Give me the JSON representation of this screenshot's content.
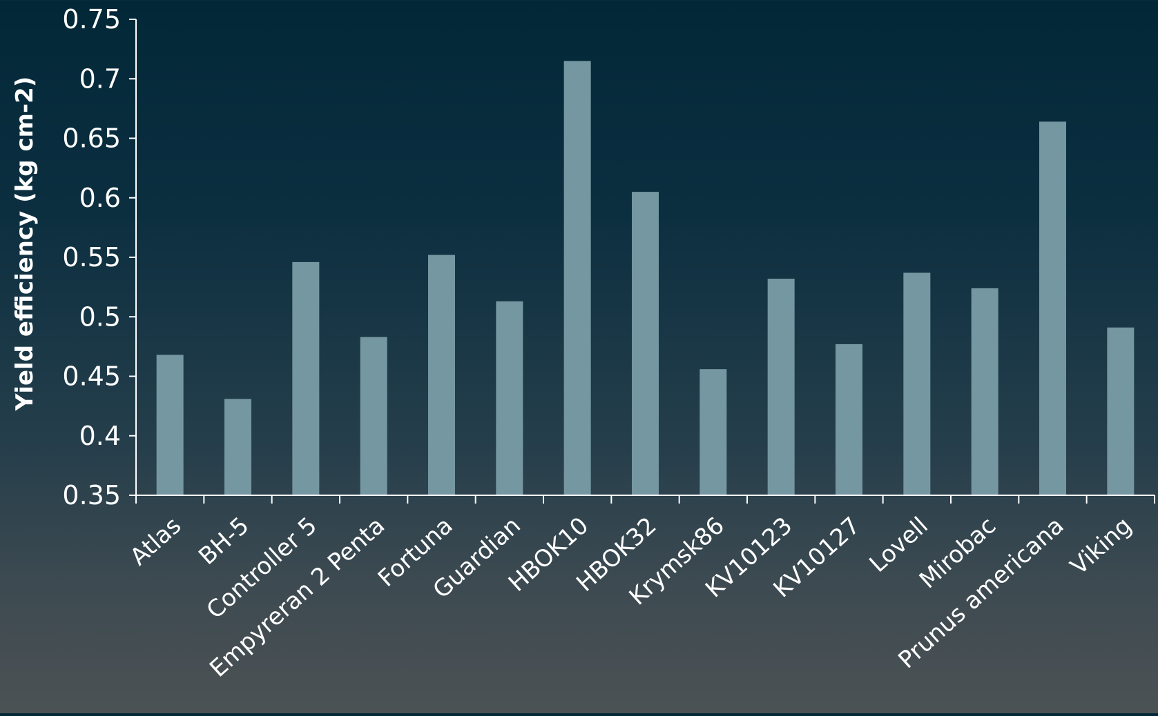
{
  "chart_data": {
    "type": "bar",
    "title": "",
    "xlabel": "",
    "ylabel": "Yield efficiency (kg cm-2)",
    "ylim": [
      0.35,
      0.75
    ],
    "yticks": [
      "0.35",
      "0.4",
      "0.45",
      "0.5",
      "0.55",
      "0.6",
      "0.65",
      "0.7",
      "0.75"
    ],
    "grid": false,
    "legend": "none",
    "categories": [
      "Atlas",
      "BH-5",
      "Controller 5",
      "Empyreran 2 Penta",
      "Fortuna",
      "Guardian",
      "HBOK10",
      "HBOK32",
      "Krymsk86",
      "KV10123",
      "KV10127",
      "Lovell",
      "Mirobac",
      "Prunus americana",
      "Viking"
    ],
    "values": [
      0.468,
      0.431,
      0.546,
      0.483,
      0.552,
      0.513,
      0.715,
      0.605,
      0.456,
      0.532,
      0.477,
      0.537,
      0.524,
      0.664,
      0.491
    ],
    "colors": {
      "bar": "#7597a1",
      "axis": "#ffffff",
      "text": "#ffffff"
    }
  }
}
